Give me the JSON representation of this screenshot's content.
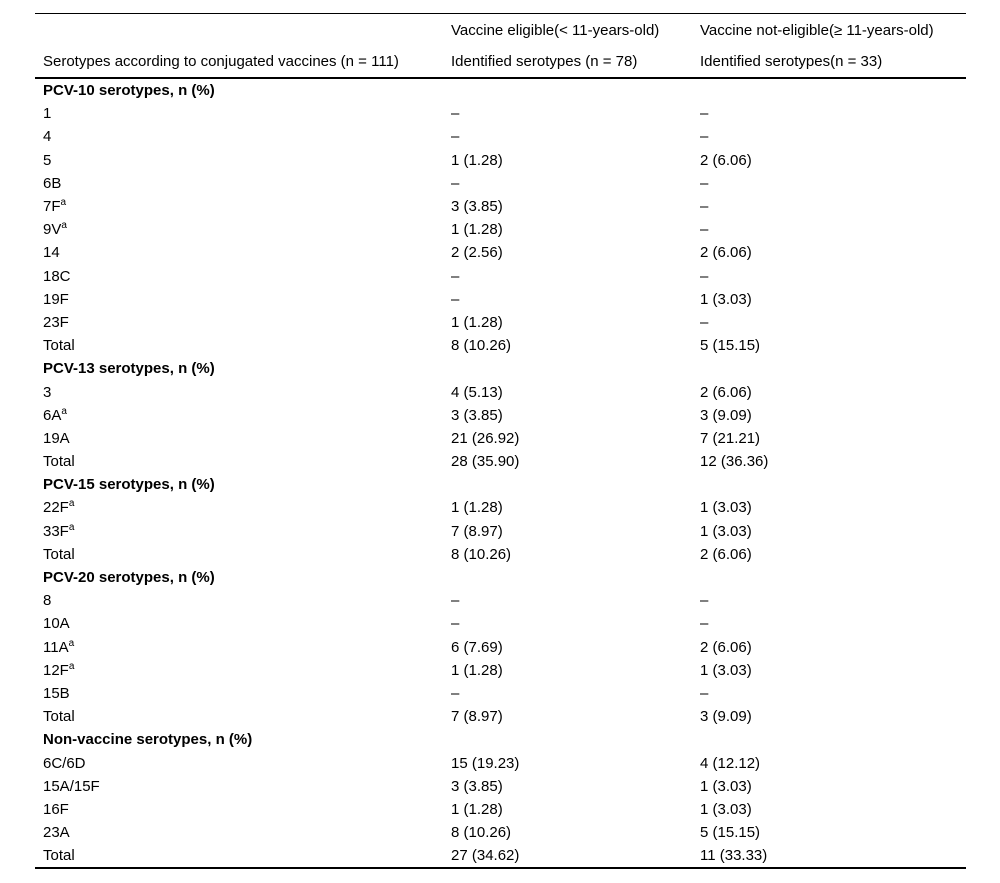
{
  "table": {
    "header": {
      "col1_label": "Serotypes according to conjugated vaccines (n = 111)",
      "group_eligible": "Vaccine eligible(< 11-years-old)",
      "group_not_eligible": "Vaccine not-eligible(≥ 11-years-old)",
      "sub_eligible": "Identified serotypes (n = 78)",
      "sub_not_eligible": "Identified serotypes(n = 33)"
    },
    "empty_cell_dash": "–",
    "sections": [
      {
        "title": "PCV-10 serotypes, n (%)",
        "rows": [
          {
            "serotype": "1",
            "sup": "",
            "eligible": "–",
            "not_eligible": "–"
          },
          {
            "serotype": "4",
            "sup": "",
            "eligible": "–",
            "not_eligible": "–"
          },
          {
            "serotype": "5",
            "sup": "",
            "eligible": "1 (1.28)",
            "not_eligible": "2 (6.06)"
          },
          {
            "serotype": "6B",
            "sup": "",
            "eligible": "–",
            "not_eligible": "–"
          },
          {
            "serotype": "7F",
            "sup": "a",
            "eligible": "3 (3.85)",
            "not_eligible": "–"
          },
          {
            "serotype": "9V",
            "sup": "a",
            "eligible": "1 (1.28)",
            "not_eligible": "–"
          },
          {
            "serotype": "14",
            "sup": "",
            "eligible": "2 (2.56)",
            "not_eligible": "2 (6.06)"
          },
          {
            "serotype": "18C",
            "sup": "",
            "eligible": "–",
            "not_eligible": "–"
          },
          {
            "serotype": "19F",
            "sup": "",
            "eligible": "–",
            "not_eligible": "1 (3.03)"
          },
          {
            "serotype": "23F",
            "sup": "",
            "eligible": "1 (1.28)",
            "not_eligible": "–"
          },
          {
            "serotype": "Total",
            "sup": "",
            "eligible": "8 (10.26)",
            "not_eligible": "5 (15.15)"
          }
        ]
      },
      {
        "title": "PCV-13 serotypes, n (%)",
        "rows": [
          {
            "serotype": "3",
            "sup": "",
            "eligible": "4 (5.13)",
            "not_eligible": "2 (6.06)"
          },
          {
            "serotype": "6A",
            "sup": "a",
            "eligible": "3 (3.85)",
            "not_eligible": "3 (9.09)"
          },
          {
            "serotype": "19A",
            "sup": "",
            "eligible": "21 (26.92)",
            "not_eligible": "7 (21.21)"
          },
          {
            "serotype": "Total",
            "sup": "",
            "eligible": "28 (35.90)",
            "not_eligible": "12 (36.36)"
          }
        ]
      },
      {
        "title": "PCV-15 serotypes, n (%)",
        "rows": [
          {
            "serotype": "22F",
            "sup": "a",
            "eligible": "1 (1.28)",
            "not_eligible": "1 (3.03)"
          },
          {
            "serotype": "33F",
            "sup": "a",
            "eligible": "7 (8.97)",
            "not_eligible": "1 (3.03)"
          },
          {
            "serotype": "Total",
            "sup": "",
            "eligible": "8 (10.26)",
            "not_eligible": "2 (6.06)"
          }
        ]
      },
      {
        "title": "PCV-20 serotypes, n (%)",
        "rows": [
          {
            "serotype": "8",
            "sup": "",
            "eligible": "–",
            "not_eligible": "–"
          },
          {
            "serotype": "10A",
            "sup": "",
            "eligible": "–",
            "not_eligible": "–"
          },
          {
            "serotype": "11A",
            "sup": "a",
            "eligible": "6 (7.69)",
            "not_eligible": "2 (6.06)"
          },
          {
            "serotype": "12F",
            "sup": "a",
            "eligible": "1 (1.28)",
            "not_eligible": "1 (3.03)"
          },
          {
            "serotype": "15B",
            "sup": "",
            "eligible": "–",
            "not_eligible": "–"
          },
          {
            "serotype": "Total",
            "sup": "",
            "eligible": "7 (8.97)",
            "not_eligible": "3 (9.09)"
          }
        ]
      },
      {
        "title": "Non-vaccine serotypes, n (%)",
        "rows": [
          {
            "serotype": "6C/6D",
            "sup": "",
            "eligible": "15 (19.23)",
            "not_eligible": "4 (12.12)"
          },
          {
            "serotype": "15A/15F",
            "sup": "",
            "eligible": "3 (3.85)",
            "not_eligible": "1 (3.03)"
          },
          {
            "serotype": "16F",
            "sup": "",
            "eligible": "1 (1.28)",
            "not_eligible": "1 (3.03)"
          },
          {
            "serotype": "23A",
            "sup": "",
            "eligible": "8 (10.26)",
            "not_eligible": "5 (15.15)"
          },
          {
            "serotype": "Total",
            "sup": "",
            "eligible": "27 (34.62)",
            "not_eligible": "11 (33.33)"
          }
        ]
      }
    ]
  }
}
